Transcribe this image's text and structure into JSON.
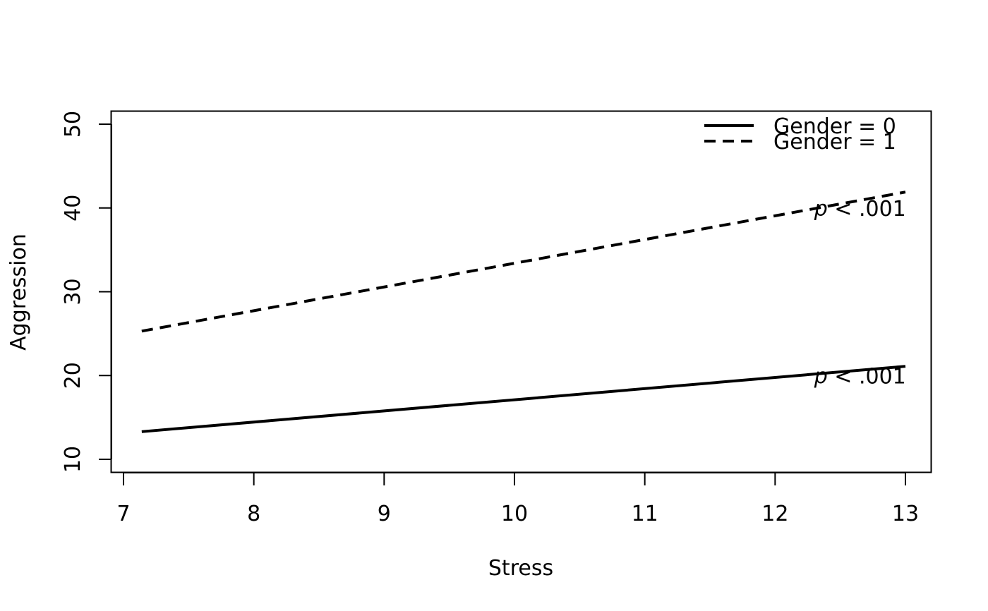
{
  "chart_data": {
    "type": "line",
    "title": "",
    "xlabel": "Stress",
    "ylabel": "Aggression",
    "xlim": [
      7,
      13
    ],
    "ylim": [
      10,
      50
    ],
    "x_ticks": [
      7,
      8,
      9,
      10,
      11,
      12,
      13
    ],
    "y_ticks": [
      10,
      20,
      30,
      40,
      50
    ],
    "x_tick_labels": [
      "7",
      "8",
      "9",
      "10",
      "11",
      "12",
      "13"
    ],
    "y_tick_labels": [
      "10",
      "20",
      "30",
      "40",
      "50"
    ],
    "grid": false,
    "legend_position": "top-right",
    "series": [
      {
        "name": "Gender = 0",
        "line_style": "solid",
        "color": "#000000",
        "x": [
          7.14,
          13.0
        ],
        "y": [
          13.3,
          21.1
        ]
      },
      {
        "name": "Gender = 1",
        "line_style": "dashed",
        "color": "#000000",
        "x": [
          7.14,
          13.0
        ],
        "y": [
          25.3,
          41.9
        ]
      }
    ],
    "annotations": [
      {
        "prefix": "p",
        "text": " < .001",
        "x": 12.3,
        "y": 40.0
      },
      {
        "prefix": "p",
        "text": " < .001",
        "x": 12.3,
        "y": 20.0
      }
    ]
  }
}
